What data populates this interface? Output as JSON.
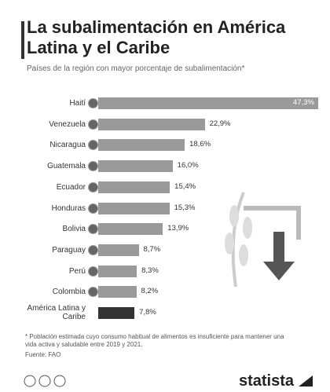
{
  "chart_data": {
    "type": "bar",
    "title": "La subalimentación en América Latina y el Caribe",
    "subtitle": "Países de la región con mayor porcentaje de subalimentación*",
    "categories": [
      "Haití",
      "Venezuela",
      "Nicaragua",
      "Guatemala",
      "Ecuador",
      "Honduras",
      "Bolivia",
      "Paraguay",
      "Perú",
      "Colombia",
      "América Latina y Caribe"
    ],
    "values": [
      47.3,
      22.9,
      18.6,
      16.0,
      15.4,
      15.3,
      13.9,
      8.7,
      8.3,
      8.2,
      7.8
    ],
    "value_labels": [
      "47,3%",
      "22,9%",
      "18,6%",
      "16,0%",
      "15,4%",
      "15,3%",
      "13,9%",
      "8,7%",
      "8,3%",
      "8,2%",
      "7,8%"
    ],
    "colors": [
      "#9a9a9a",
      "#9a9a9a",
      "#9a9a9a",
      "#9a9a9a",
      "#9a9a9a",
      "#9a9a9a",
      "#9a9a9a",
      "#9a9a9a",
      "#9a9a9a",
      "#9a9a9a",
      "#333333"
    ],
    "footnote": "* Población estimada cuyo consumo habitual de alimentos es insuficiente para mantener una vida activa y saludable entre 2019 y 2021.",
    "source": "Fuente: FAO",
    "brand": "statista"
  }
}
